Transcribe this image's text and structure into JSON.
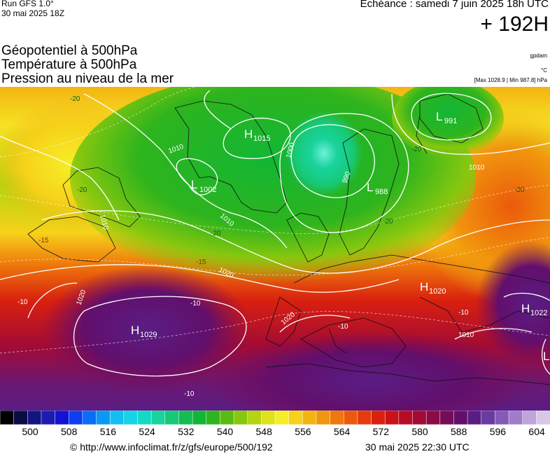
{
  "header": {
    "run_line1": "Run GFS 1.0°",
    "run_line2": "30 mai 2025 18Z",
    "echeance": "Echéance : samedi 7 juin 2025 18h UTC",
    "lead_time": "+ 192H"
  },
  "titles": {
    "line1": "Géopotentiel à 500hPa",
    "line2": "Température à 500hPa",
    "line3": "Pression au niveau de la mer"
  },
  "meta": {
    "source": "gpdam",
    "unit": "°C",
    "maxmin": "[Max 1028.9 | Min 987.8] hPa"
  },
  "pressure_centers": [
    {
      "type": "H",
      "value": "1015"
    },
    {
      "type": "L",
      "value": "1002"
    },
    {
      "type": "L",
      "value": "988"
    },
    {
      "type": "L",
      "value": "991"
    },
    {
      "type": "H",
      "value": "1020"
    },
    {
      "type": "H",
      "value": "1029"
    },
    {
      "type": "H",
      "value": "1022"
    },
    {
      "type": "L",
      "value": ""
    }
  ],
  "isobar_labels": [
    "1010",
    "1000",
    "990",
    "1010",
    "1020",
    "1020",
    "1010",
    "1020",
    "1010",
    "1010"
  ],
  "temp_labels": [
    "-20",
    "-20",
    "-20",
    "-20",
    "-20",
    "-20",
    "-15",
    "-15",
    "-10",
    "-10",
    "-10",
    "-10",
    "-10"
  ],
  "colorbar": {
    "colors": [
      "#000000",
      "#0b0b46",
      "#141480",
      "#1c1cb0",
      "#1212d4",
      "#0f3df0",
      "#0b6cf6",
      "#0a98f5",
      "#14bef0",
      "#17d3e6",
      "#16d8c5",
      "#19d39c",
      "#17c977",
      "#12bd53",
      "#12b636",
      "#2eb41d",
      "#59bb10",
      "#86c70f",
      "#b3d40e",
      "#dde21a",
      "#f6ee28",
      "#f6d21a",
      "#f3b412",
      "#f1970e",
      "#ee780c",
      "#eb5a0b",
      "#e53b0c",
      "#d9200f",
      "#c9121a",
      "#b60c26",
      "#a20b35",
      "#8c0b45",
      "#760c58",
      "#620f6c",
      "#5a1d84",
      "#6a3ba2",
      "#8559b8",
      "#a07cc9",
      "#bda4da",
      "#d6c8e6"
    ],
    "ticks": [
      "500",
      "508",
      "516",
      "524",
      "532",
      "540",
      "548",
      "556",
      "564",
      "572",
      "580",
      "588",
      "596",
      "604"
    ]
  },
  "footer": {
    "url": "© http://www.infoclimat.fr/z/gfs/europe/500/192",
    "timestamp": "30 mai 2025 22:30 UTC"
  }
}
